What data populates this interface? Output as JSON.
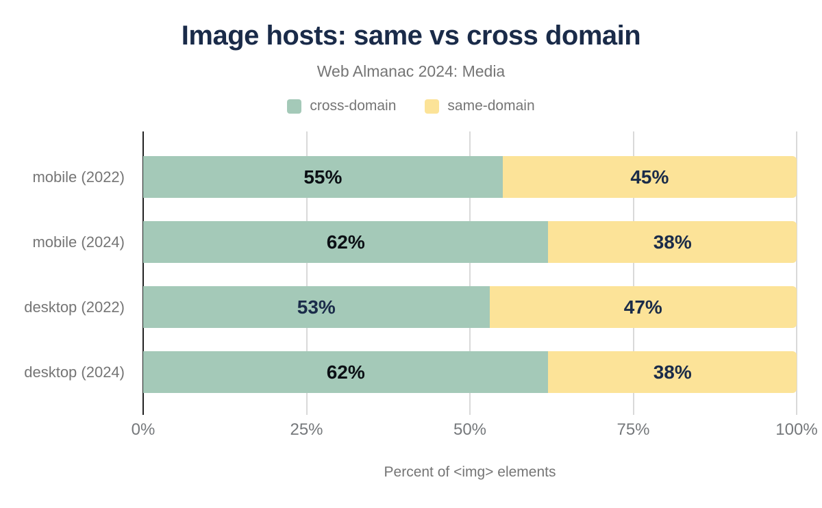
{
  "title": "Image hosts: same vs cross domain",
  "subtitle": "Web Almanac 2024: Media",
  "legend": [
    {
      "label": "cross-domain",
      "color": "#a4c9b8"
    },
    {
      "label": "same-domain",
      "color": "#fce398"
    }
  ],
  "chart_data": {
    "type": "bar",
    "orientation": "horizontal",
    "stacked": true,
    "title": "Image hosts: same vs cross domain",
    "subtitle": "Web Almanac 2024: Media",
    "categories": [
      "mobile (2022)",
      "mobile (2024)",
      "desktop (2022)",
      "desktop (2024)"
    ],
    "series": [
      {
        "name": "cross-domain",
        "color": "#a4c9b8",
        "values": [
          55,
          62,
          53,
          62
        ],
        "value_labels": [
          "55%",
          "62%",
          "53%",
          "62%"
        ],
        "label_colors": [
          "#0b0f14",
          "#0b0f14",
          "#1a2b49",
          "#0b0f14"
        ]
      },
      {
        "name": "same-domain",
        "color": "#fce398",
        "values": [
          45,
          38,
          47,
          38
        ],
        "value_labels": [
          "45%",
          "38%",
          "47%",
          "38%"
        ],
        "label_colors": [
          "#1a2b49",
          "#1a2b49",
          "#1a2b49",
          "#1a2b49"
        ]
      }
    ],
    "x_ticks": [
      {
        "label": "0%",
        "value": 0
      },
      {
        "label": "25%",
        "value": 25
      },
      {
        "label": "50%",
        "value": 50
      },
      {
        "label": "75%",
        "value": 75
      },
      {
        "label": "100%",
        "value": 100
      }
    ],
    "xlim": [
      0,
      100
    ],
    "xlabel": "Percent of <img> elements",
    "grid": "vertical",
    "legend_position": "top",
    "colors": {
      "title_text": "#1a2b49",
      "muted_text": "#757575",
      "gridline": "#d9d9d9",
      "axis_line": "#212121"
    }
  }
}
